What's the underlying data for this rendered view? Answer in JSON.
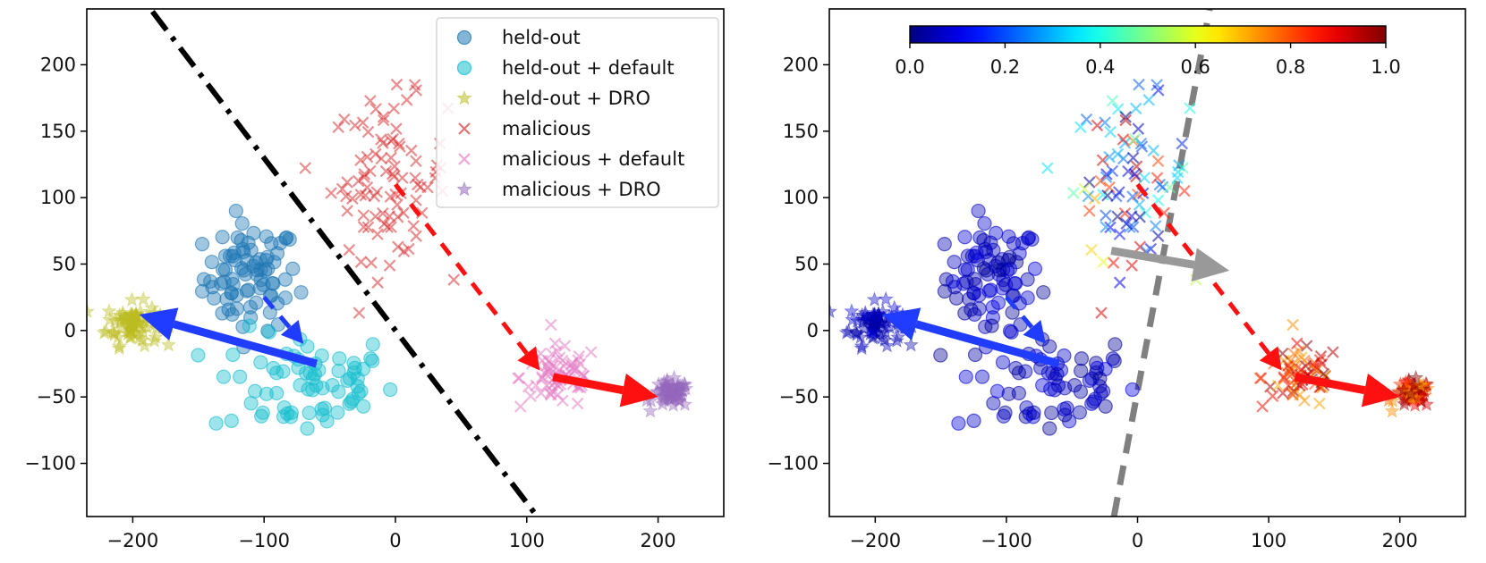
{
  "chart_data": [
    {
      "type": "scatter",
      "panel": "left",
      "xlim": [
        -235,
        250
      ],
      "ylim": [
        -140,
        242
      ],
      "xticks": [
        -200,
        -100,
        0,
        100,
        200
      ],
      "yticks": [
        -100,
        -50,
        0,
        50,
        100,
        150,
        200
      ],
      "xtick_labels": [
        "−200",
        "−100",
        "0",
        "100",
        "200"
      ],
      "ytick_labels": [
        "−100",
        "−50",
        "0",
        "50",
        "100",
        "150",
        "200"
      ],
      "legend_position": "top-right",
      "series": [
        {
          "name": "held-out",
          "marker": "circle",
          "color": "#1f77b4",
          "cx": -110,
          "cy": 40,
          "sx": 18,
          "sy": 20,
          "n": 80
        },
        {
          "name": "held-out + default",
          "marker": "circle",
          "color": "#17becf",
          "cx": -70,
          "cy": -40,
          "sx": 35,
          "sy": 20,
          "n": 70
        },
        {
          "name": "held-out + DRO",
          "marker": "star",
          "color": "#bcbd22",
          "cx": -200,
          "cy": 5,
          "sx": 10,
          "sy": 8,
          "n": 80
        },
        {
          "name": "malicious",
          "marker": "x",
          "color": "#d62728",
          "cx": -5,
          "cy": 115,
          "sx": 22,
          "sy": 30,
          "n": 90
        },
        {
          "name": "malicious + default",
          "marker": "x",
          "color": "#e377c2",
          "cx": 125,
          "cy": -35,
          "sx": 15,
          "sy": 12,
          "n": 70
        },
        {
          "name": "malicious + DRO",
          "marker": "star",
          "color": "#9467bd",
          "cx": 210,
          "cy": -48,
          "sx": 7,
          "sy": 5,
          "n": 60
        }
      ],
      "decision_boundary": {
        "style": "dash-dot",
        "color": "#000000",
        "points": [
          [
            -185,
            240
          ],
          [
            108,
            -140
          ]
        ]
      },
      "arrows": [
        {
          "from": [
            -60,
            -25
          ],
          "to": [
            -195,
            12
          ],
          "color": "#1f3cff",
          "style": "solid"
        },
        {
          "from": [
            -100,
            25
          ],
          "to": [
            -70,
            -10
          ],
          "color": "#1f3cff",
          "style": "dashed"
        },
        {
          "from": [
            120,
            -35
          ],
          "to": [
            200,
            -50
          ],
          "color": "#ff1010",
          "style": "solid"
        },
        {
          "from": [
            0,
            110
          ],
          "to": [
            110,
            -30
          ],
          "color": "#ff1010",
          "style": "dashed"
        }
      ]
    },
    {
      "type": "scatter",
      "panel": "right",
      "xlim": [
        -235,
        250
      ],
      "ylim": [
        -140,
        242
      ],
      "xticks": [
        -200,
        -100,
        0,
        100,
        200
      ],
      "yticks": [
        -100,
        -50,
        0,
        50,
        100,
        150,
        200
      ],
      "xtick_labels": [
        "−200",
        "−100",
        "0",
        "100",
        "200"
      ],
      "ytick_labels": [
        "−100",
        "−50",
        "0",
        "50",
        "100",
        "150",
        "200"
      ],
      "colormap": "jet",
      "colorbar": {
        "range": [
          0.0,
          1.0
        ],
        "ticks": [
          0.0,
          0.2,
          0.4,
          0.6,
          0.8,
          1.0
        ],
        "tick_labels": [
          "0.0",
          "0.2",
          "0.4",
          "0.6",
          "0.8",
          "1.0"
        ],
        "position": "top"
      },
      "decision_boundary": {
        "style": "dashed",
        "color": "#808080",
        "points": [
          [
            -18,
            -140
          ],
          [
            55,
            242
          ]
        ]
      },
      "arrows": [
        {
          "from": [
            -60,
            -25
          ],
          "to": [
            -195,
            12
          ],
          "color": "#1f3cff",
          "style": "solid"
        },
        {
          "from": [
            -100,
            25
          ],
          "to": [
            -70,
            -10
          ],
          "color": "#1f3cff",
          "style": "dashed"
        },
        {
          "from": [
            120,
            -35
          ],
          "to": [
            200,
            -50
          ],
          "color": "#ff1010",
          "style": "solid"
        },
        {
          "from": [
            0,
            110
          ],
          "to": [
            110,
            -30
          ],
          "color": "#ff1010",
          "style": "dashed"
        },
        {
          "from": [
            -20,
            60
          ],
          "to": [
            70,
            45
          ],
          "color": "#999999",
          "style": "solid"
        }
      ]
    }
  ]
}
